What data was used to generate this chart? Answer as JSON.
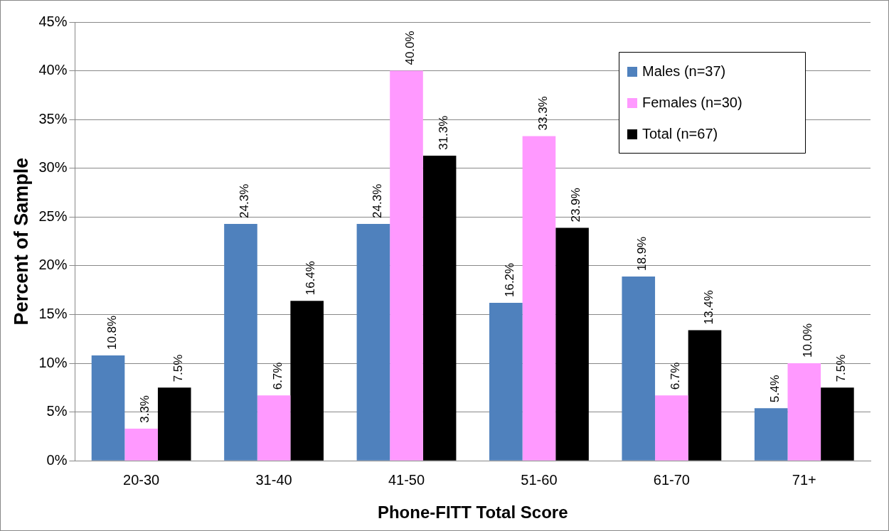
{
  "chart_data": {
    "type": "bar",
    "xlabel": "Phone-FITT Total Score",
    "ylabel": "Percent of Sample",
    "categories": [
      "20-30",
      "31-40",
      "41-50",
      "51-60",
      "61-70",
      "71+"
    ],
    "series": [
      {
        "name": "Males (n=37)",
        "color": "#4f81bd",
        "values": [
          10.8,
          24.3,
          24.3,
          16.2,
          18.9,
          5.4
        ],
        "value_labels": [
          "10.8%",
          "24.3%",
          "24.3%",
          "16.2%",
          "18.9%",
          "5.4%"
        ]
      },
      {
        "name": "Females (n=30)",
        "color": "#ff99ff",
        "values": [
          3.3,
          6.7,
          40.0,
          33.3,
          6.7,
          10.0
        ],
        "value_labels": [
          "3.3%",
          "6.7%",
          "40.0%",
          "33.3%",
          "6.7%",
          "10.0%"
        ]
      },
      {
        "name": "Total (n=67)",
        "color": "#000000",
        "values": [
          7.5,
          16.4,
          31.3,
          23.9,
          13.4,
          7.5
        ],
        "value_labels": [
          "7.5%",
          "16.4%",
          "31.3%",
          "23.9%",
          "13.4%",
          "7.5%"
        ]
      }
    ],
    "ylim": [
      0,
      45
    ],
    "yticks": [
      {
        "value": 0,
        "label": "0%"
      },
      {
        "value": 5,
        "label": "5%"
      },
      {
        "value": 10,
        "label": "10%"
      },
      {
        "value": 15,
        "label": "15%"
      },
      {
        "value": 20,
        "label": "20%"
      },
      {
        "value": 25,
        "label": "25%"
      },
      {
        "value": 30,
        "label": "30%"
      },
      {
        "value": 35,
        "label": "35%"
      },
      {
        "value": 40,
        "label": "40%"
      },
      {
        "value": 45,
        "label": "45%"
      }
    ],
    "grid": "y",
    "legend": "top right"
  }
}
